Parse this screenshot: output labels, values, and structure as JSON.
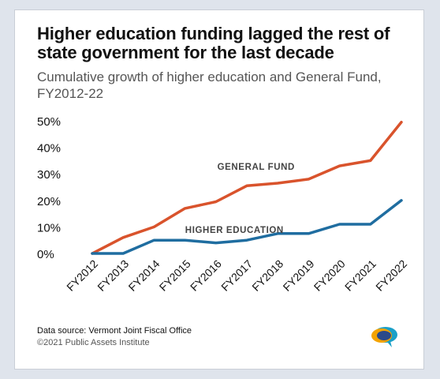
{
  "header": {
    "title": "Higher education funding lagged the rest of state government for the last decade",
    "subtitle": "Cumulative growth of higher education and General Fund, FY2012-22"
  },
  "footer": {
    "source": "Data source: Vermont Joint Fiscal Office",
    "copyright": "©2021 Public Assets Institute"
  },
  "logo": {
    "icon": "speech-bubble-logo-icon",
    "colors": [
      "#f4a300",
      "#1aa0c8",
      "#2a4a8a"
    ]
  },
  "chart_data": {
    "type": "line",
    "x": [
      "FY2012",
      "FY2013",
      "FY2014",
      "FY2015",
      "FY2016",
      "FY2017",
      "FY2018",
      "FY2019",
      "FY2020",
      "FY2021",
      "FY2022"
    ],
    "series": [
      {
        "name": "GENERAL FUND",
        "color": "#d9532c",
        "values": [
          0,
          6,
          10,
          17,
          19.5,
          25.5,
          26.5,
          28,
          33,
          35,
          49.5
        ]
      },
      {
        "name": "HIGHER EDUCATION",
        "color": "#1f6da0",
        "values": [
          0,
          0,
          5,
          5,
          4,
          5,
          7.5,
          7.5,
          11,
          11,
          20
        ]
      }
    ],
    "yticks": [
      "0%",
      "10%",
      "20%",
      "30%",
      "40%",
      "50%"
    ],
    "ytick_values": [
      0,
      10,
      20,
      30,
      40,
      50
    ],
    "ylim": [
      0,
      50
    ],
    "grid": false,
    "legend": "inline-labels"
  }
}
